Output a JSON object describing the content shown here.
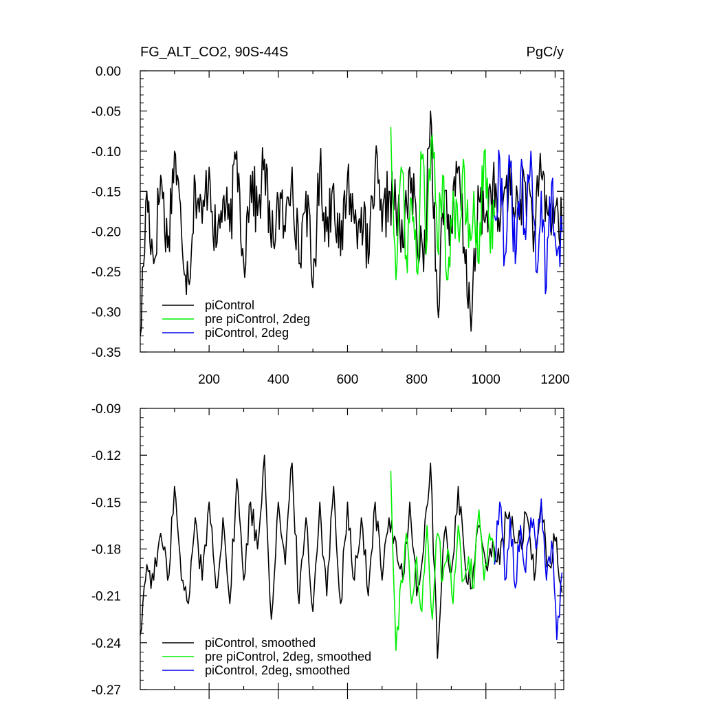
{
  "figure": {
    "title_left": "FG_ALT_CO2, 90S-44S",
    "title_right": "PgC/y"
  },
  "colors": {
    "piControl": "#000000",
    "pre_piControl_2deg": "#00ee00",
    "piControl_2deg": "#0000ee"
  },
  "chart_data": [
    {
      "type": "line",
      "panel": "top",
      "title": "FG_ALT_CO2, 90S-44S",
      "unit": "PgC/y",
      "xlim": [
        1,
        1225
      ],
      "ylim": [
        -0.35,
        0.0
      ],
      "x_ticks": [
        200,
        400,
        600,
        800,
        1000,
        1200
      ],
      "x_tick_labels": [
        "200",
        "400",
        "600",
        "800",
        "1000",
        "1200"
      ],
      "y_ticks": [
        0.0,
        -0.05,
        -0.1,
        -0.15,
        -0.2,
        -0.25,
        -0.3,
        -0.35
      ],
      "y_tick_labels": [
        "0.00",
        "-0.05",
        "-0.10",
        "-0.15",
        "-0.20",
        "-0.25",
        "-0.30",
        "-0.35"
      ],
      "legend_position": "bottom-left",
      "series": [
        {
          "name": "piControl",
          "color": "#000000",
          "x": [
            1,
            20,
            40,
            60,
            80,
            100,
            120,
            140,
            160,
            180,
            200,
            220,
            240,
            260,
            280,
            300,
            320,
            340,
            360,
            380,
            400,
            420,
            440,
            460,
            480,
            500,
            520,
            540,
            560,
            580,
            600,
            620,
            640,
            660,
            680,
            700,
            720,
            740,
            760,
            780,
            800,
            820,
            840,
            860,
            880,
            900,
            920,
            940,
            960,
            980,
            1000,
            1020,
            1040,
            1060,
            1080,
            1100,
            1120,
            1140,
            1160,
            1180,
            1200,
            1220
          ],
          "y": [
            -0.33,
            -0.15,
            -0.24,
            -0.13,
            -0.22,
            -0.1,
            -0.2,
            -0.26,
            -0.14,
            -0.19,
            -0.12,
            -0.22,
            -0.16,
            -0.2,
            -0.1,
            -0.24,
            -0.13,
            -0.18,
            -0.11,
            -0.22,
            -0.16,
            -0.2,
            -0.12,
            -0.24,
            -0.15,
            -0.27,
            -0.12,
            -0.2,
            -0.14,
            -0.23,
            -0.13,
            -0.19,
            -0.17,
            -0.24,
            -0.12,
            -0.2,
            -0.15,
            -0.17,
            -0.22,
            -0.12,
            -0.2,
            -0.25,
            -0.05,
            -0.29,
            -0.15,
            -0.2,
            -0.12,
            -0.24,
            -0.3,
            -0.16,
            -0.18,
            -0.14,
            -0.2,
            -0.13,
            -0.17,
            -0.16,
            -0.14,
            -0.2,
            -0.13,
            -0.18,
            -0.17,
            -0.2
          ]
        },
        {
          "name": "pre piControl, 2deg",
          "color": "#00ee00",
          "x": [
            725,
            740,
            755,
            770,
            785,
            800,
            815,
            830,
            845,
            860,
            875,
            890,
            905,
            920,
            935,
            950,
            965,
            980,
            995,
            1010,
            1025
          ],
          "y": [
            -0.07,
            -0.26,
            -0.12,
            -0.23,
            -0.16,
            -0.25,
            -0.11,
            -0.21,
            -0.08,
            -0.22,
            -0.13,
            -0.26,
            -0.15,
            -0.2,
            -0.11,
            -0.22,
            -0.15,
            -0.24,
            -0.1,
            -0.2,
            -0.18
          ]
        },
        {
          "name": "piControl, 2deg",
          "color": "#0000ee",
          "x": [
            1025,
            1040,
            1055,
            1070,
            1085,
            1100,
            1115,
            1130,
            1145,
            1160,
            1175,
            1190,
            1205,
            1220
          ],
          "y": [
            -0.18,
            -0.11,
            -0.23,
            -0.12,
            -0.24,
            -0.13,
            -0.21,
            -0.1,
            -0.25,
            -0.15,
            -0.27,
            -0.14,
            -0.23,
            -0.2
          ]
        }
      ],
      "legend": [
        "piControl",
        "pre piControl, 2deg",
        "piControl, 2deg"
      ]
    },
    {
      "type": "line",
      "panel": "bottom",
      "xlim": [
        1,
        1225
      ],
      "ylim": [
        -0.27,
        -0.09
      ],
      "y_ticks": [
        -0.09,
        -0.12,
        -0.15,
        -0.18,
        -0.21,
        -0.24,
        -0.27
      ],
      "y_tick_labels": [
        "-0.09",
        "-0.12",
        "-0.15",
        "-0.18",
        "-0.21",
        "-0.24",
        "-0.27"
      ],
      "legend_position": "bottom-left",
      "series": [
        {
          "name": "piControl, smoothed",
          "color": "#000000",
          "x": [
            1,
            20,
            40,
            60,
            80,
            100,
            120,
            140,
            160,
            180,
            200,
            220,
            240,
            260,
            280,
            300,
            320,
            340,
            360,
            380,
            400,
            420,
            440,
            460,
            480,
            500,
            520,
            540,
            560,
            580,
            600,
            620,
            640,
            660,
            680,
            700,
            720,
            740,
            760,
            780,
            800,
            820,
            840,
            860,
            880,
            900,
            920,
            940,
            960,
            980,
            1000,
            1020,
            1040,
            1060,
            1080,
            1100,
            1120,
            1140,
            1160,
            1180,
            1200,
            1220
          ],
          "y": [
            -0.235,
            -0.19,
            -0.2,
            -0.17,
            -0.2,
            -0.14,
            -0.2,
            -0.215,
            -0.16,
            -0.2,
            -0.15,
            -0.205,
            -0.16,
            -0.215,
            -0.135,
            -0.2,
            -0.15,
            -0.18,
            -0.12,
            -0.225,
            -0.15,
            -0.19,
            -0.125,
            -0.215,
            -0.16,
            -0.22,
            -0.15,
            -0.21,
            -0.14,
            -0.215,
            -0.15,
            -0.2,
            -0.16,
            -0.21,
            -0.15,
            -0.2,
            -0.16,
            -0.175,
            -0.2,
            -0.15,
            -0.21,
            -0.18,
            -0.125,
            -0.25,
            -0.17,
            -0.195,
            -0.14,
            -0.19,
            -0.205,
            -0.165,
            -0.19,
            -0.175,
            -0.19,
            -0.16,
            -0.17,
            -0.175,
            -0.16,
            -0.2,
            -0.15,
            -0.19,
            -0.175,
            -0.208
          ]
        },
        {
          "name": "pre piControl, 2deg, smoothed",
          "color": "#00ee00",
          "x": [
            725,
            740,
            755,
            770,
            785,
            800,
            815,
            830,
            845,
            860,
            875,
            890,
            905,
            920,
            935,
            950,
            965,
            980,
            995,
            1010,
            1025
          ],
          "y": [
            -0.13,
            -0.245,
            -0.2,
            -0.17,
            -0.215,
            -0.185,
            -0.22,
            -0.165,
            -0.225,
            -0.17,
            -0.2,
            -0.18,
            -0.215,
            -0.165,
            -0.2,
            -0.185,
            -0.205,
            -0.155,
            -0.2,
            -0.17,
            -0.19
          ]
        },
        {
          "name": "piControl, 2deg, smoothed",
          "color": "#0000ee",
          "x": [
            1025,
            1040,
            1055,
            1070,
            1085,
            1100,
            1115,
            1130,
            1145,
            1160,
            1175,
            1190,
            1205,
            1220
          ],
          "y": [
            -0.19,
            -0.15,
            -0.2,
            -0.16,
            -0.205,
            -0.165,
            -0.195,
            -0.16,
            -0.18,
            -0.148,
            -0.2,
            -0.175,
            -0.238,
            -0.195
          ]
        }
      ],
      "legend": [
        "piControl, smoothed",
        "pre piControl, 2deg, smoothed",
        "piControl, 2deg, smoothed"
      ]
    }
  ]
}
